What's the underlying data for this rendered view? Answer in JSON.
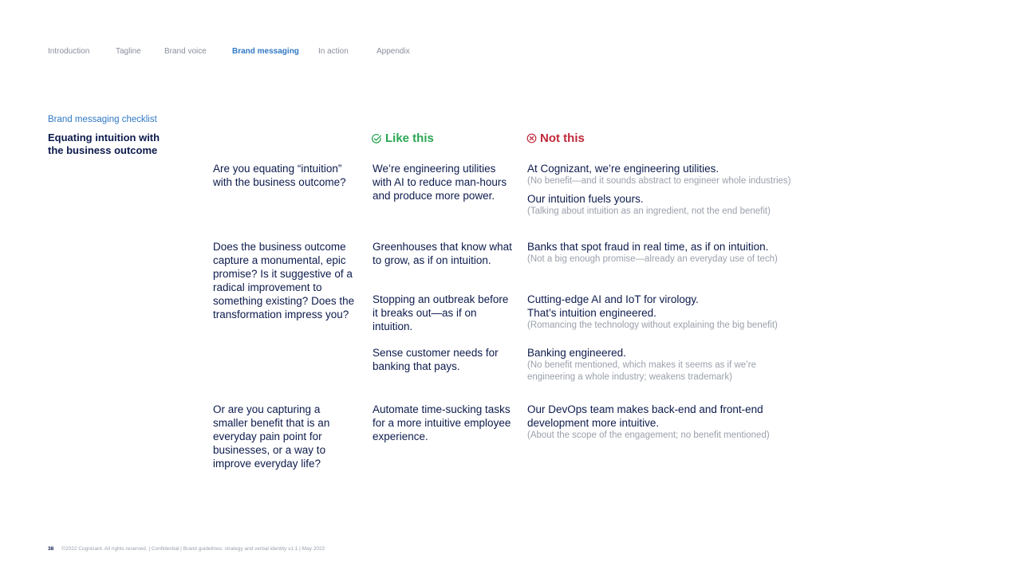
{
  "nav": {
    "items": [
      {
        "label": "Introduction"
      },
      {
        "label": "Tagline"
      },
      {
        "label": "Brand voice"
      },
      {
        "label": "Brand messaging"
      },
      {
        "label": "In action"
      },
      {
        "label": "Appendix"
      }
    ],
    "active": "Brand messaging"
  },
  "section": {
    "kicker": "Brand messaging checklist",
    "heading": "Equating intuition with the business outcome"
  },
  "columns": {
    "like": "Like this",
    "not": "Not this"
  },
  "rows": {
    "r1": {
      "question": "Are you equating “intuition” with the business outcome?",
      "like": "We’re engineering utilities with AI to reduce man-hours and produce more power.",
      "not1": "At Cognizant, we’re engineering utilities.",
      "not1_note": "(No benefit—and it sounds abstract to engineer whole industries)",
      "not2": "Our intuition fuels yours.",
      "not2_note": "(Talking about intuition as an ingredient, not the end benefit)"
    },
    "r2": {
      "question": "Does the business outcome capture a monumental, epic promise? Is it suggestive of a radical improvement to something existing? Does the transformation impress you?",
      "like1": "Greenhouses that know what to grow, as if on intuition.",
      "not1": "Banks that spot fraud in real time, as if on intuition.",
      "not1_note": "(Not a big enough promise—already an everyday use of tech)",
      "like2": "Stopping an outbreak before it breaks out—as if on intuition.",
      "not2a": "Cutting-edge AI and IoT for virology.",
      "not2b": "That’s intuition engineered.",
      "not2_note": "(Romancing the technology without explaining the big benefit)",
      "like3": "Sense customer needs for banking that pays.",
      "not3": "Banking engineered.",
      "not3_note": "(No benefit mentioned, which makes it seems as if we’re engineering a whole industry; weakens trademark)"
    },
    "r3": {
      "question": "Or are you capturing a smaller benefit that is an everyday pain point for businesses, or a way to improve everyday life?",
      "like": "Automate time-sucking tasks for a more intuitive employee experience.",
      "not": "Our DevOps team makes back-end and front-end development more intuitive.",
      "not_note": "(About the scope of the engagement; no benefit mentioned)"
    }
  },
  "footer": {
    "page": "38",
    "text": "©2022 Cognizant. All rights reserved.  |  Confidential  |  Brand guidelines: strategy and verbal identity v1.1  |  May 2022"
  },
  "colors": {
    "accent": "#2f78c4",
    "like": "#2aa653",
    "not": "#c0283a",
    "text": "#0d1b4c",
    "muted": "#9aa0ab"
  }
}
